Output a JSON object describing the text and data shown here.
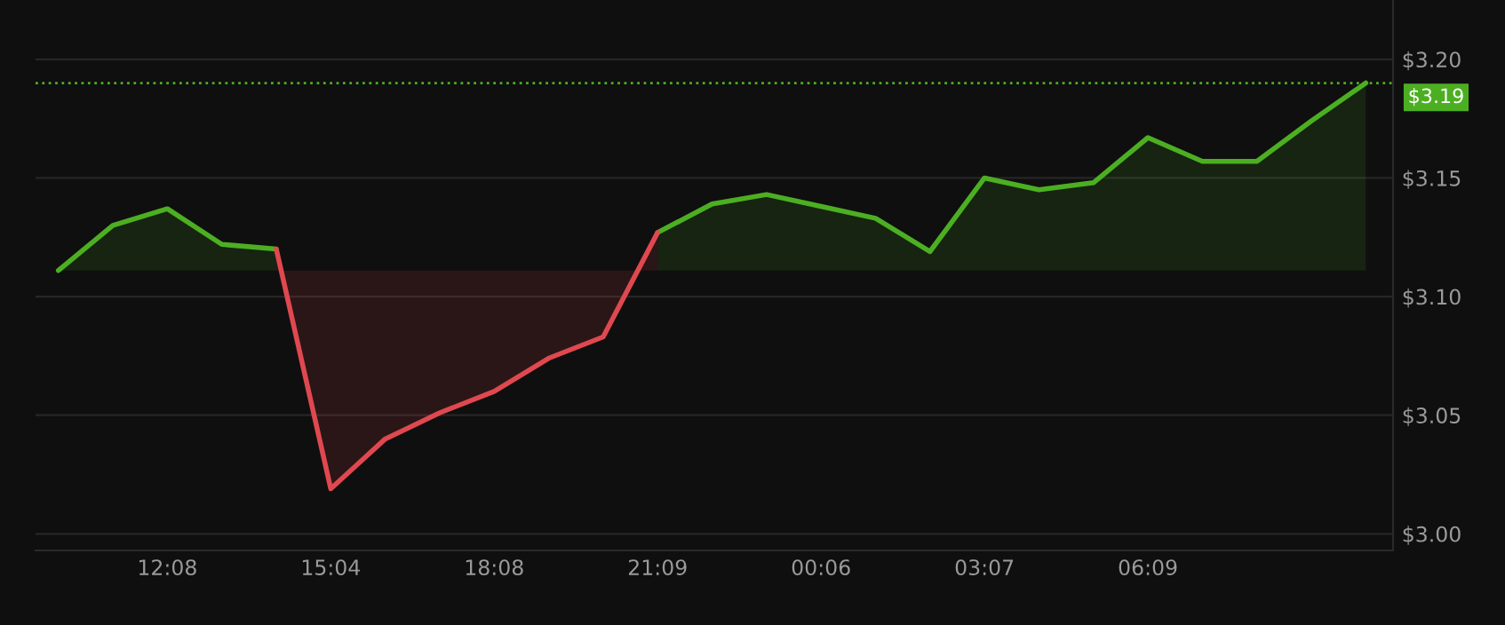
{
  "chart_data": {
    "type": "area",
    "categories": [
      null,
      null,
      "12:08",
      null,
      null,
      "15:04",
      null,
      null,
      "18:08",
      null,
      null,
      "21:09",
      null,
      null,
      "00:06",
      null,
      null,
      "03:07",
      null,
      null,
      "06:09",
      null,
      null,
      null,
      null
    ],
    "series": [
      {
        "color": "#4caf22",
        "values": [
          3.111,
          3.13,
          3.137,
          3.122,
          3.12,
          null,
          null,
          null,
          null,
          null,
          null,
          3.127,
          3.139,
          3.143,
          3.138,
          3.133,
          3.119,
          3.15,
          3.145,
          3.148,
          3.167,
          3.157,
          3.157,
          3.174,
          3.19
        ]
      },
      {
        "color": "#e0484f",
        "values": [
          null,
          null,
          null,
          null,
          3.12,
          3.019,
          3.04,
          3.051,
          3.06,
          3.074,
          3.083,
          3.127,
          null,
          null,
          null,
          null,
          null,
          null,
          null,
          null,
          null,
          null,
          null,
          null,
          null
        ]
      }
    ],
    "ylim": [
      2.993,
      3.225
    ],
    "yticks": [
      {
        "value": 3.0,
        "label": "$3.00"
      },
      {
        "value": 3.05,
        "label": "$3.05"
      },
      {
        "value": 3.1,
        "label": "$3.10"
      },
      {
        "value": 3.15,
        "label": "$3.15"
      },
      {
        "value": 3.2,
        "label": "$3.20"
      }
    ],
    "grid": "y",
    "ref_lines": [
      {
        "axis": "y",
        "value": 3.19,
        "label": "$3.19",
        "color": "#4caf22",
        "line_style": "dotted"
      }
    ]
  }
}
